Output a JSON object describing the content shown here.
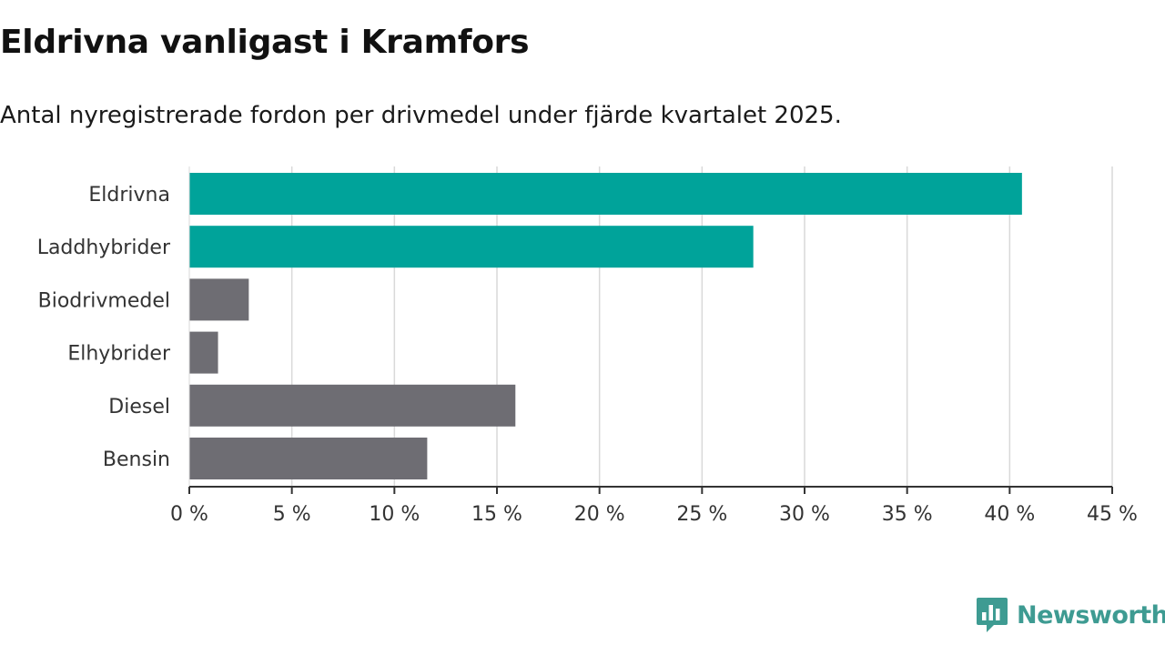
{
  "title": "Eldrivna vanligast i Kramfors",
  "subtitle": "Antal nyregistrerade fordon per drivmedel under fjärde kvartalet 2025.",
  "brand": {
    "name": "Newsworthy",
    "color": "#3e9b92"
  },
  "colors": {
    "highlight": "#00a39a",
    "other": "#6e6d73",
    "grid": "#d9d9d9",
    "axis": "#333333"
  },
  "chart_data": {
    "type": "bar",
    "orientation": "horizontal",
    "title": "Eldrivna vanligast i Kramfors",
    "subtitle": "Antal nyregistrerade fordon per drivmedel under fjärde kvartalet 2025.",
    "xlabel": "",
    "ylabel": "",
    "categories": [
      "Eldrivna",
      "Laddhybrider",
      "Biodrivmedel",
      "Elhybrider",
      "Diesel",
      "Bensin"
    ],
    "values": [
      40.6,
      27.5,
      2.9,
      1.4,
      15.9,
      11.6
    ],
    "highlighted": [
      true,
      true,
      false,
      false,
      false,
      false
    ],
    "xlim": [
      0,
      45
    ],
    "ticks": [
      0,
      5,
      10,
      15,
      20,
      25,
      30,
      35,
      40,
      45
    ],
    "tick_labels": [
      "0 %",
      "5 %",
      "10 %",
      "15 %",
      "20 %",
      "25 %",
      "30 %",
      "35 %",
      "40 %",
      "45 %"
    ],
    "grid": true
  }
}
